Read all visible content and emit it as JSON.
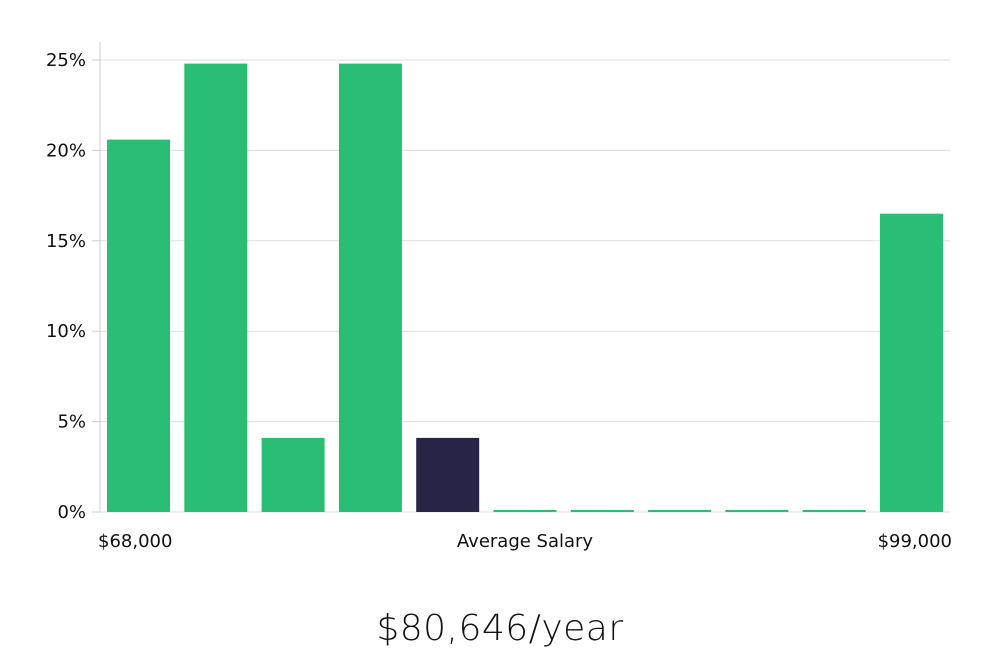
{
  "chart_data": {
    "type": "bar",
    "categories": [
      "bin-1",
      "bin-2",
      "bin-3",
      "bin-4",
      "bin-5",
      "bin-6",
      "bin-7",
      "bin-8",
      "bin-9",
      "bin-10",
      "bin-11"
    ],
    "values": [
      20.6,
      24.8,
      4.1,
      24.8,
      4.1,
      0,
      0,
      0,
      0,
      0,
      16.5
    ],
    "highlight_index": 4,
    "ylim": [
      0,
      26
    ],
    "yticks": [
      {
        "value": 0,
        "label": "0%"
      },
      {
        "value": 5,
        "label": "5%"
      },
      {
        "value": 10,
        "label": "10%"
      },
      {
        "value": 15,
        "label": "15%"
      },
      {
        "value": 20,
        "label": "20%"
      },
      {
        "value": 25,
        "label": "25%"
      }
    ],
    "x_min_label": "$68,000",
    "x_center_label": "Average Salary",
    "x_max_label": "$99,000",
    "grid": true,
    "colors": {
      "bar": "#2abd76",
      "highlight": "#282447",
      "grid": "#dddddd",
      "axis": "#cccccc",
      "text": "#111111"
    }
  },
  "salary_text": "$80,646/year"
}
